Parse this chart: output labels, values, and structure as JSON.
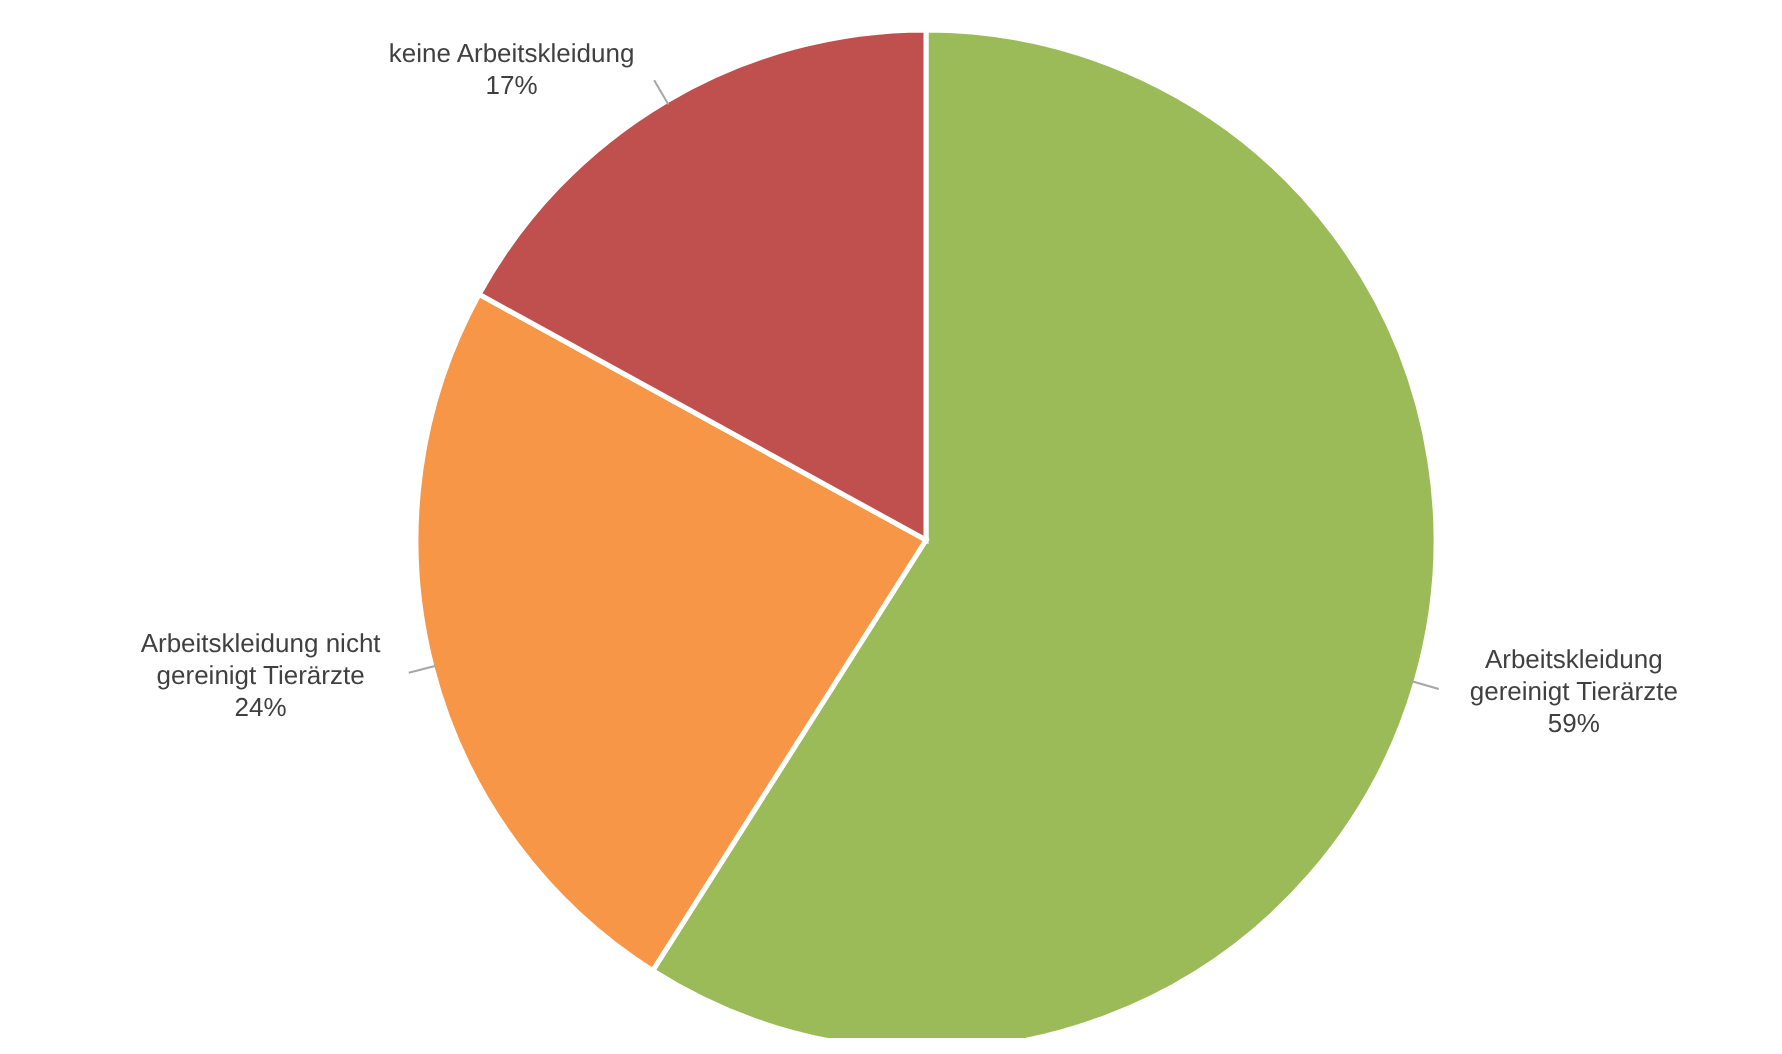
{
  "chart_data": {
    "type": "pie",
    "categories": [
      "Arbeitskleidung gereinigt Tierärzte",
      "Arbeitskleidung nicht gereinigt Tierärzte",
      "keine Arbeitskleidung"
    ],
    "values": [
      59,
      24,
      17
    ],
    "value_labels": [
      "59%",
      "24%",
      "17%"
    ],
    "colors": [
      "#9bbb59",
      "#f79646",
      "#c0504d"
    ]
  }
}
